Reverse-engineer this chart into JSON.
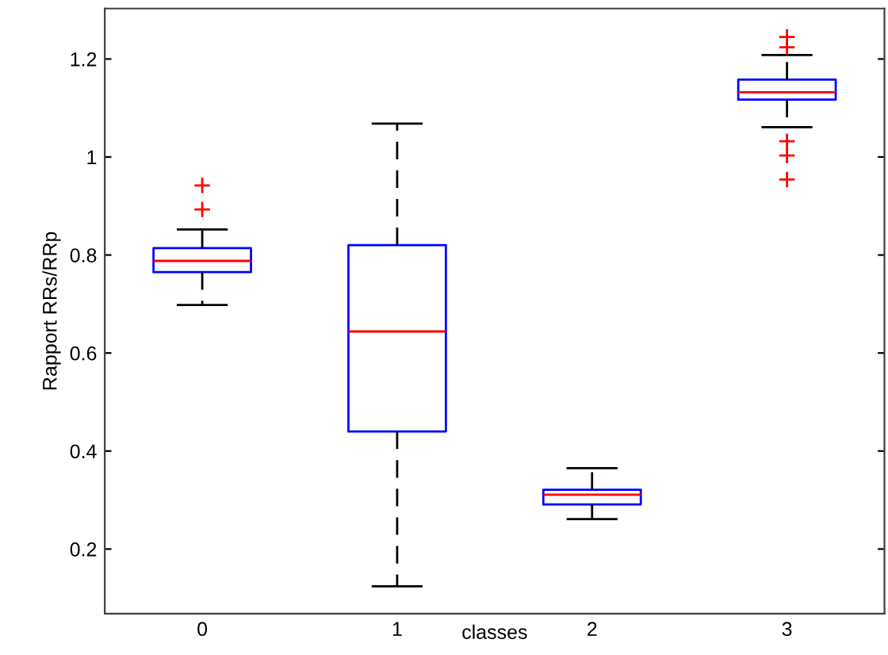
{
  "chart_data": {
    "type": "box",
    "xlabel": "classes",
    "ylabel": "Rapport RRs/RRp",
    "categories": [
      "0",
      "1",
      "2",
      "3"
    ],
    "boxes": [
      {
        "low": 0.698,
        "q1": 0.765,
        "median": 0.788,
        "q3": 0.814,
        "high": 0.852,
        "outliers": [
          0.893,
          0.942
        ]
      },
      {
        "low": 0.124,
        "q1": 0.44,
        "median": 0.644,
        "q3": 0.82,
        "high": 1.068
      },
      {
        "low": 0.261,
        "q1": 0.291,
        "median": 0.311,
        "q3": 0.321,
        "high": 0.365
      },
      {
        "low": 1.061,
        "q1": 1.117,
        "median": 1.132,
        "q3": 1.158,
        "high": 1.208,
        "outliers": [
          1.245,
          1.224,
          1.032,
          1.003,
          0.954
        ]
      }
    ],
    "color": "#0000ff",
    "marker": "cross",
    "line_style": "dashed",
    "ylim": [
      0.068,
      1.303
    ],
    "yticks": [
      0.2,
      0.4,
      0.6,
      0.8,
      {
        "value": 1,
        "label": "1"
      },
      1.2
    ],
    "grid": false,
    "legend": false
  }
}
